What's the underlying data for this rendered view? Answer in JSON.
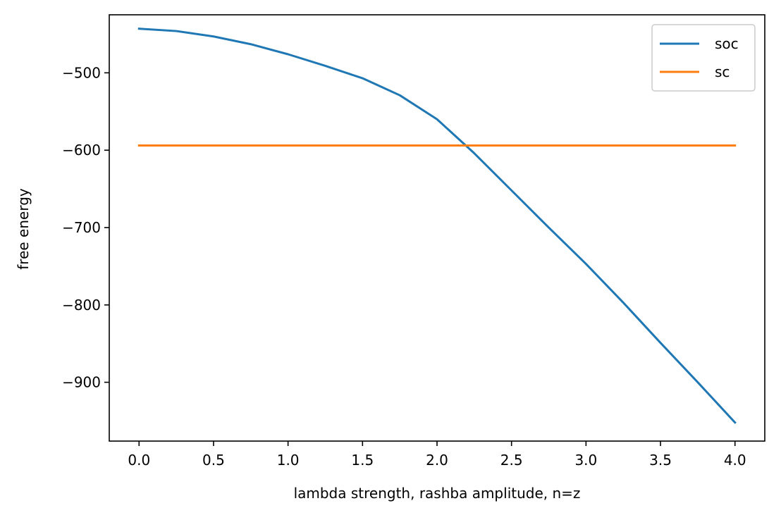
{
  "chart_data": {
    "type": "line",
    "title": "",
    "xlabel": "lambda strength, rashba amplitude, n=z",
    "ylabel": "free energy",
    "xlim": [
      -0.2,
      4.2
    ],
    "ylim": [
      -976,
      -425
    ],
    "xticks": [
      0.0,
      0.5,
      1.0,
      1.5,
      2.0,
      2.5,
      3.0,
      3.5,
      4.0
    ],
    "xtick_labels": [
      "0.0",
      "0.5",
      "1.0",
      "1.5",
      "2.0",
      "2.5",
      "3.0",
      "3.5",
      "4.0"
    ],
    "yticks": [
      -500,
      -600,
      -700,
      -800,
      -900
    ],
    "ytick_labels": [
      "−500",
      "−600",
      "−700",
      "−800",
      "−900"
    ],
    "grid": false,
    "legend_position": "top-right",
    "series": [
      {
        "name": "soc",
        "color": "#1f77b4",
        "x": [
          0.0,
          0.25,
          0.5,
          0.75,
          1.0,
          1.25,
          1.5,
          1.75,
          2.0,
          2.25,
          2.5,
          2.75,
          3.0,
          3.25,
          3.5,
          3.75,
          4.0
        ],
        "y": [
          -443,
          -446,
          -453,
          -463,
          -476,
          -491,
          -507,
          -529,
          -560,
          -604,
          -652,
          -700,
          -747,
          -797,
          -849,
          -900,
          -952
        ]
      },
      {
        "name": "sc",
        "color": "#ff7f0e",
        "x": [
          0.0,
          4.0
        ],
        "y": [
          -594,
          -594
        ]
      }
    ]
  }
}
